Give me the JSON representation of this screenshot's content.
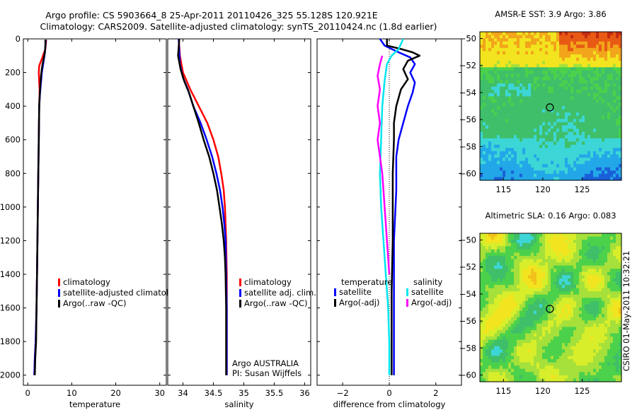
{
  "title_line1": "Argo profile: CS 5903664_8 25-Apr-2011 20110426_325 55.128S 120.921E",
  "title_line2": "Climatology: CARS2009. Satellite-adjusted climatology: synTS_20110424.nc (1.8d earlier)",
  "side_label": "CSIRO 01-May-2011 10:32:21",
  "chart_data": [
    {
      "id": "temperature",
      "type": "line",
      "xlabel": "temperature",
      "xlim": [
        -1,
        31.5
      ],
      "ylim": [
        0,
        2060
      ],
      "y_reversed": true,
      "xticks": [
        0,
        10,
        20,
        30
      ],
      "yticks": [
        0,
        200,
        400,
        600,
        800,
        1000,
        1200,
        1400,
        1600,
        1800,
        2000
      ],
      "series": [
        {
          "name": "climatology",
          "color": "#ff0000",
          "points": [
            [
              4.2,
              5
            ],
            [
              4.0,
              60
            ],
            [
              3.2,
              120
            ],
            [
              2.6,
              160
            ],
            [
              2.5,
              200
            ],
            [
              2.6,
              260
            ],
            [
              2.7,
              300
            ],
            [
              2.6,
              400
            ],
            [
              2.5,
              600
            ],
            [
              2.4,
              800
            ],
            [
              2.3,
              1000
            ],
            [
              2.2,
              1200
            ],
            [
              2.1,
              1400
            ],
            [
              2.0,
              1600
            ],
            [
              1.8,
              1800
            ],
            [
              1.6,
              1900
            ],
            [
              1.5,
              2000
            ]
          ]
        },
        {
          "name": "satellite-adjusted climatology",
          "color": "#0000ff",
          "points": [
            [
              4.1,
              5
            ],
            [
              4.0,
              50
            ],
            [
              3.8,
              100
            ],
            [
              3.5,
              150
            ],
            [
              3.2,
              200
            ],
            [
              3.0,
              260
            ],
            [
              2.8,
              320
            ],
            [
              2.6,
              400
            ],
            [
              2.5,
              600
            ],
            [
              2.4,
              800
            ],
            [
              2.3,
              1000
            ],
            [
              2.2,
              1200
            ],
            [
              2.1,
              1400
            ],
            [
              2.0,
              1600
            ],
            [
              1.8,
              1800
            ],
            [
              1.6,
              1900
            ],
            [
              1.5,
              2000
            ]
          ]
        },
        {
          "name": "Argo(..raw -QC)",
          "color": "#000000",
          "points": [
            [
              4.0,
              5
            ],
            [
              4.0,
              40
            ],
            [
              3.9,
              80
            ],
            [
              3.6,
              120
            ],
            [
              3.3,
              160
            ],
            [
              3.0,
              220
            ],
            [
              2.8,
              300
            ],
            [
              2.6,
              400
            ],
            [
              2.5,
              600
            ],
            [
              2.4,
              800
            ],
            [
              2.3,
              1000
            ],
            [
              2.2,
              1200
            ],
            [
              2.1,
              1400
            ],
            [
              2.0,
              1600
            ],
            [
              1.9,
              1800
            ],
            [
              1.7,
              1900
            ],
            [
              1.6,
              2000
            ]
          ]
        }
      ],
      "legend": {
        "position": "lower-right",
        "entries": [
          {
            "label": "climatology",
            "color": "#ff0000"
          },
          {
            "label": "satellite-adjusted climatolog",
            "color": "#0000ff"
          },
          {
            "label": "Argo(..raw -QC)",
            "color": "#000000"
          }
        ]
      }
    },
    {
      "id": "salinity",
      "type": "line",
      "xlabel": "salinity",
      "xlim": [
        33.75,
        36.1
      ],
      "ylim": [
        0,
        2060
      ],
      "y_reversed": true,
      "xticks": [
        34,
        34.5,
        35,
        35.5,
        36
      ],
      "xticklabels": [
        "34",
        "34.5",
        "35",
        "35.5",
        "36"
      ],
      "series": [
        {
          "name": "climatology",
          "color": "#ff0000",
          "points": [
            [
              33.93,
              0
            ],
            [
              33.95,
              100
            ],
            [
              34.0,
              200
            ],
            [
              34.12,
              300
            ],
            [
              34.26,
              400
            ],
            [
              34.4,
              500
            ],
            [
              34.5,
              600
            ],
            [
              34.58,
              700
            ],
            [
              34.63,
              800
            ],
            [
              34.67,
              900
            ],
            [
              34.69,
              1000
            ],
            [
              34.7,
              1100
            ],
            [
              34.71,
              1200
            ],
            [
              34.72,
              1400
            ],
            [
              34.72,
              1600
            ],
            [
              34.72,
              1800
            ],
            [
              34.72,
              2000
            ]
          ]
        },
        {
          "name": "satellite adj. clim.",
          "color": "#0000ff",
          "points": [
            [
              33.93,
              0
            ],
            [
              33.94,
              80
            ],
            [
              33.95,
              150
            ],
            [
              34.0,
              230
            ],
            [
              34.08,
              300
            ],
            [
              34.17,
              400
            ],
            [
              34.29,
              500
            ],
            [
              34.39,
              600
            ],
            [
              34.48,
              700
            ],
            [
              34.55,
              800
            ],
            [
              34.61,
              900
            ],
            [
              34.65,
              1000
            ],
            [
              34.68,
              1100
            ],
            [
              34.7,
              1200
            ],
            [
              34.71,
              1400
            ],
            [
              34.72,
              1600
            ],
            [
              34.72,
              1800
            ],
            [
              34.72,
              2000
            ]
          ]
        },
        {
          "name": "Argo(..raw -QC)",
          "color": "#000000",
          "points": [
            [
              33.94,
              0
            ],
            [
              33.92,
              100
            ],
            [
              33.96,
              180
            ],
            [
              34.02,
              250
            ],
            [
              34.1,
              320
            ],
            [
              34.17,
              400
            ],
            [
              34.26,
              500
            ],
            [
              34.34,
              600
            ],
            [
              34.43,
              700
            ],
            [
              34.5,
              800
            ],
            [
              34.56,
              900
            ],
            [
              34.6,
              1000
            ],
            [
              34.64,
              1100
            ],
            [
              34.67,
              1200
            ],
            [
              34.69,
              1300
            ],
            [
              34.7,
              1400
            ],
            [
              34.71,
              1600
            ],
            [
              34.71,
              1800
            ],
            [
              34.71,
              2000
            ]
          ]
        }
      ],
      "legend": {
        "position": "lower-right",
        "entries": [
          {
            "label": "climatology",
            "color": "#ff0000"
          },
          {
            "label": "satellite adj. clim.",
            "color": "#0000ff"
          },
          {
            "label": "Argo(..raw -QC)",
            "color": "#000000"
          }
        ]
      },
      "annotation": [
        "Argo AUSTRALIA",
        "PI: Susan Wijffels"
      ]
    },
    {
      "id": "difference",
      "type": "line",
      "xlabel": "difference from climatology",
      "xlim": [
        -3.1,
        3.1
      ],
      "ylim": [
        0,
        2060
      ],
      "y_reversed": true,
      "xticks": [
        -2,
        0,
        2
      ],
      "series": [
        {
          "name": "temperature satellite",
          "color": "#0000ff",
          "points": [
            [
              -0.4,
              0
            ],
            [
              -0.2,
              40
            ],
            [
              0.4,
              80
            ],
            [
              0.9,
              110
            ],
            [
              1.1,
              150
            ],
            [
              0.9,
              200
            ],
            [
              1.1,
              260
            ],
            [
              1.0,
              320
            ],
            [
              0.8,
              400
            ],
            [
              0.6,
              500
            ],
            [
              0.4,
              600
            ],
            [
              0.3,
              700
            ],
            [
              0.3,
              900
            ],
            [
              0.2,
              1200
            ],
            [
              0.2,
              1500
            ],
            [
              0.2,
              1800
            ],
            [
              0.2,
              2000
            ]
          ]
        },
        {
          "name": "temperature Argo(-adj)",
          "color": "#000000",
          "points": [
            [
              -0.1,
              0
            ],
            [
              -0.1,
              40
            ],
            [
              0.5,
              60
            ],
            [
              1.0,
              80
            ],
            [
              1.3,
              100
            ],
            [
              0.8,
              130
            ],
            [
              0.6,
              180
            ],
            [
              0.8,
              240
            ],
            [
              0.5,
              300
            ],
            [
              0.4,
              350
            ],
            [
              0.3,
              400
            ],
            [
              0.2,
              500
            ],
            [
              0.2,
              600
            ],
            [
              0.15,
              800
            ],
            [
              0.15,
              1000
            ],
            [
              0.15,
              1200
            ],
            [
              0.1,
              1500
            ],
            [
              0.1,
              1800
            ],
            [
              0.1,
              2000
            ]
          ]
        },
        {
          "name": "salinity satellite",
          "color": "#00e5ee",
          "points": [
            [
              0.6,
              0
            ],
            [
              0.4,
              60
            ],
            [
              0.1,
              100
            ],
            [
              -0.1,
              150
            ],
            [
              -0.2,
              250
            ],
            [
              -0.3,
              400
            ],
            [
              -0.35,
              600
            ],
            [
              -0.4,
              800
            ],
            [
              -0.35,
              1000
            ],
            [
              -0.25,
              1200
            ],
            [
              -0.15,
              1400
            ],
            [
              -0.05,
              1600
            ],
            [
              0.0,
              1800
            ],
            [
              0.0,
              2000
            ]
          ]
        },
        {
          "name": "salinity Argo(-adj)",
          "color": "#ff00ff",
          "points": [
            [
              -0.3,
              100
            ],
            [
              -0.4,
              150
            ],
            [
              -0.5,
              220
            ],
            [
              -0.4,
              300
            ],
            [
              -0.5,
              400
            ],
            [
              -0.4,
              500
            ],
            [
              -0.5,
              600
            ],
            [
              -0.4,
              700
            ],
            [
              -0.3,
              800
            ],
            [
              -0.25,
              900
            ],
            [
              -0.2,
              1000
            ],
            [
              -0.15,
              1100
            ],
            [
              -0.1,
              1200
            ],
            [
              -0.05,
              1300
            ],
            [
              0.0,
              1400
            ]
          ]
        }
      ],
      "zero_line": "dotted",
      "legend": {
        "position": "lower",
        "groups": [
          {
            "heading": "temperature",
            "entries": [
              {
                "label": "satellite",
                "color": "#0000ff"
              },
              {
                "label": "Argo(-adj)",
                "color": "#000000"
              }
            ]
          },
          {
            "heading": "salinity",
            "entries": [
              {
                "label": "satellite",
                "color": "#00e5ee"
              },
              {
                "label": "Argo(-adj)",
                "color": "#ff00ff"
              }
            ]
          }
        ]
      }
    },
    {
      "id": "sst_map",
      "type": "heatmap",
      "title": "AMSR-E SST: 3.9 Argo: 3.86",
      "xlim": [
        112,
        130
      ],
      "ylim": [
        -60.5,
        -49.5
      ],
      "xticks": [
        115,
        120,
        125
      ],
      "yticks": [
        -50,
        -52,
        -54,
        -56,
        -58,
        -60
      ],
      "marker": {
        "lon": 120.9,
        "lat": -55.1
      },
      "pattern": "warm north (red/orange) cooling southward to green mid-band and cyan/blue south",
      "color_stops": [
        "#1a5fd9",
        "#22a8e8",
        "#3dd6d6",
        "#3fbf6a",
        "#4bd14b",
        "#a6e03a",
        "#f2e41f",
        "#f2a51a",
        "#e85a14",
        "#c42a10"
      ]
    },
    {
      "id": "sla_map",
      "type": "heatmap",
      "title": "Altimetric SLA: 0.16 Argo: 0.083",
      "xlim": [
        112,
        130
      ],
      "ylim": [
        -60.5,
        -49.5
      ],
      "xticks": [
        115,
        120,
        125
      ],
      "yticks": [
        -50,
        -52,
        -54,
        -56,
        -58,
        -60
      ],
      "marker": {
        "lon": 120.9,
        "lat": -55.1
      },
      "pattern": "mottled green/yellow eddy field with scattered cyan lows",
      "color_stops": [
        "#22a8e8",
        "#3dd6d6",
        "#3fbf6a",
        "#4bd14b",
        "#a6e03a",
        "#d8ee2a",
        "#f2e41f",
        "#f2c21a"
      ]
    }
  ]
}
